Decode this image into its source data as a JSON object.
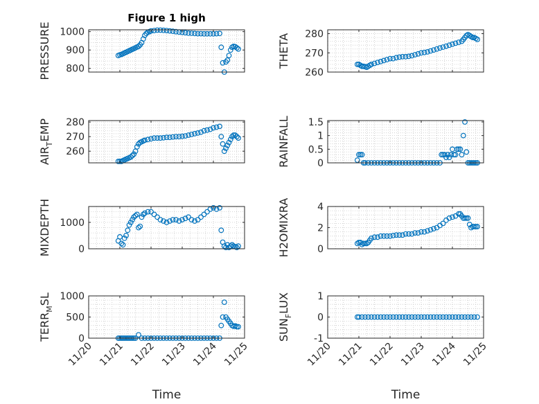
{
  "chart_data": [
    {
      "type": "scatter",
      "title": "Figure 1 high",
      "ylabel": "PRESSURE",
      "xlim": [
        20,
        25
      ],
      "ylim": [
        780,
        1010
      ],
      "yticks": [
        800,
        900,
        1000
      ],
      "x": [
        20.95,
        21.0,
        21.05,
        21.1,
        21.15,
        21.2,
        21.25,
        21.3,
        21.35,
        21.4,
        21.45,
        21.5,
        21.55,
        21.6,
        21.65,
        21.7,
        21.75,
        21.8,
        21.85,
        21.9,
        21.95,
        22.0,
        22.1,
        22.2,
        22.3,
        22.4,
        22.5,
        22.6,
        22.7,
        22.8,
        22.9,
        23.0,
        23.1,
        23.2,
        23.3,
        23.4,
        23.5,
        23.6,
        23.7,
        23.8,
        23.9,
        24.0,
        24.1,
        24.2,
        24.25,
        24.3,
        24.35,
        24.4,
        24.45,
        24.5,
        24.55,
        24.6,
        24.65,
        24.7,
        24.75,
        24.8
      ],
      "y": [
        870,
        874,
        876,
        880,
        884,
        888,
        892,
        896,
        900,
        904,
        908,
        912,
        916,
        920,
        928,
        940,
        960,
        980,
        990,
        997,
        1000,
        1004,
        1006,
        1008,
        1008,
        1007,
        1006,
        1004,
        1002,
        1000,
        998,
        996,
        994,
        992,
        991,
        990,
        989,
        989,
        988,
        988,
        988,
        988,
        989,
        990,
        915,
        830,
        780,
        835,
        845,
        870,
        900,
        915,
        920,
        918,
        912,
        905
      ]
    },
    {
      "type": "scatter",
      "ylabel": "THETA",
      "xlim": [
        20,
        25
      ],
      "ylim": [
        260,
        282
      ],
      "yticks": [
        260,
        270,
        280
      ],
      "x": [
        20.95,
        21.0,
        21.05,
        21.1,
        21.15,
        21.2,
        21.25,
        21.3,
        21.35,
        21.4,
        21.5,
        21.6,
        21.7,
        21.8,
        21.9,
        22.0,
        22.1,
        22.2,
        22.3,
        22.4,
        22.5,
        22.6,
        22.7,
        22.8,
        22.9,
        23.0,
        23.1,
        23.2,
        23.3,
        23.4,
        23.5,
        23.6,
        23.7,
        23.8,
        23.9,
        24.0,
        24.1,
        24.2,
        24.3,
        24.35,
        24.4,
        24.45,
        24.5,
        24.55,
        24.6,
        24.65,
        24.7,
        24.75,
        24.8
      ],
      "y": [
        264,
        264,
        263.5,
        263,
        263,
        262.8,
        262.5,
        263,
        263.5,
        264,
        264.5,
        265,
        265.5,
        266,
        266.5,
        267,
        267,
        267.5,
        267.8,
        268,
        268,
        268.2,
        268.5,
        269,
        269.5,
        270,
        270.2,
        270.5,
        271,
        271.5,
        272,
        272.5,
        273,
        273.5,
        274,
        274.5,
        275,
        275.5,
        276,
        277,
        278,
        279,
        279.5,
        279,
        278.5,
        278,
        278,
        277.5,
        277
      ]
    },
    {
      "type": "scatter",
      "ylabel": "AIR_TEMP",
      "xlim": [
        20,
        25
      ],
      "ylim": [
        252,
        281
      ],
      "yticks": [
        260,
        270,
        280
      ],
      "x": [
        20.95,
        21.0,
        21.05,
        21.1,
        21.15,
        21.2,
        21.25,
        21.3,
        21.35,
        21.4,
        21.45,
        21.5,
        21.55,
        21.6,
        21.65,
        21.7,
        21.75,
        21.8,
        21.9,
        22.0,
        22.1,
        22.2,
        22.3,
        22.4,
        22.5,
        22.6,
        22.7,
        22.8,
        22.9,
        23.0,
        23.1,
        23.2,
        23.3,
        23.4,
        23.5,
        23.6,
        23.7,
        23.8,
        23.9,
        24.0,
        24.1,
        24.2,
        24.25,
        24.3,
        24.35,
        24.4,
        24.45,
        24.5,
        24.55,
        24.6,
        24.65,
        24.7,
        24.75,
        24.8
      ],
      "y": [
        253,
        253,
        253,
        253.5,
        254,
        254.5,
        255,
        255.5,
        256,
        257,
        258,
        260,
        263,
        265,
        266,
        266.5,
        267,
        267.5,
        268,
        268.5,
        269,
        269,
        269,
        269.2,
        269.5,
        269.5,
        269.8,
        270,
        270,
        270.2,
        270.5,
        271,
        271.5,
        272,
        272.5,
        273,
        274,
        274.5,
        275,
        276,
        276.5,
        277,
        270,
        265,
        260,
        262,
        264,
        266,
        268,
        270,
        271,
        271,
        270,
        269
      ]
    },
    {
      "type": "scatter",
      "ylabel": "RAINFALL",
      "xlim": [
        20,
        25
      ],
      "ylim": [
        0,
        1.55
      ],
      "yticks": [
        0,
        0.5,
        1,
        1.5
      ],
      "ytick_labels": [
        "0",
        "0.5",
        "1",
        "1.5"
      ],
      "x": [
        20.95,
        21.0,
        21.05,
        21.1,
        21.15,
        21.2,
        21.3,
        21.4,
        21.5,
        21.6,
        21.7,
        21.8,
        21.9,
        22.0,
        22.1,
        22.2,
        22.3,
        22.4,
        22.5,
        22.6,
        22.7,
        22.8,
        22.9,
        23.0,
        23.1,
        23.2,
        23.3,
        23.4,
        23.5,
        23.6,
        23.65,
        23.7,
        23.75,
        23.8,
        23.85,
        23.9,
        23.95,
        24.0,
        24.05,
        24.1,
        24.15,
        24.2,
        24.25,
        24.3,
        24.35,
        24.4,
        24.45,
        24.5,
        24.55,
        24.6,
        24.65,
        24.7,
        24.75,
        24.8
      ],
      "y": [
        0.1,
        0.3,
        0.3,
        0.3,
        0,
        0,
        0,
        0,
        0,
        0,
        0,
        0,
        0,
        0,
        0,
        0,
        0,
        0,
        0,
        0,
        0,
        0,
        0,
        0,
        0,
        0,
        0,
        0,
        0,
        0,
        0.3,
        0.3,
        0.3,
        0.2,
        0.3,
        0.2,
        0.3,
        0.5,
        0.3,
        0.3,
        0.5,
        0.5,
        0.5,
        0.3,
        1.0,
        1.5,
        0.4,
        0,
        0,
        0,
        0,
        0,
        0,
        0
      ]
    },
    {
      "type": "scatter",
      "ylabel": "MIXDEPTH",
      "xlim": [
        20,
        25
      ],
      "ylim": [
        0,
        1600
      ],
      "yticks": [
        0,
        1000
      ],
      "ytick_labels": [
        "0",
        "1000"
      ],
      "x": [
        20.95,
        21.0,
        21.05,
        21.1,
        21.15,
        21.2,
        21.25,
        21.3,
        21.35,
        21.4,
        21.45,
        21.5,
        21.55,
        21.6,
        21.65,
        21.7,
        21.75,
        21.8,
        21.9,
        22.0,
        22.1,
        22.2,
        22.3,
        22.4,
        22.5,
        22.6,
        22.7,
        22.8,
        22.9,
        23.0,
        23.1,
        23.2,
        23.3,
        23.4,
        23.5,
        23.6,
        23.7,
        23.8,
        23.9,
        24.0,
        24.1,
        24.2,
        24.25,
        24.3,
        24.35,
        24.4,
        24.45,
        24.5,
        24.55,
        24.6,
        24.65,
        24.7,
        24.75,
        24.8
      ],
      "y": [
        300,
        450,
        200,
        150,
        400,
        500,
        700,
        900,
        1000,
        1100,
        1200,
        1250,
        1300,
        800,
        850,
        1200,
        1300,
        1350,
        1400,
        1400,
        1300,
        1200,
        1100,
        1050,
        1000,
        1050,
        1100,
        1100,
        1050,
        1100,
        1150,
        1200,
        1100,
        1050,
        1100,
        1200,
        1300,
        1400,
        1500,
        1550,
        1500,
        1550,
        700,
        250,
        100,
        50,
        150,
        50,
        100,
        150,
        100,
        80,
        50,
        100
      ]
    },
    {
      "type": "scatter",
      "ylabel": "H2OMIXRA",
      "xlim": [
        20,
        25
      ],
      "ylim": [
        0,
        4
      ],
      "yticks": [
        0,
        2,
        4
      ],
      "x": [
        20.95,
        21.0,
        21.05,
        21.1,
        21.15,
        21.2,
        21.25,
        21.3,
        21.35,
        21.4,
        21.5,
        21.6,
        21.7,
        21.8,
        21.9,
        22.0,
        22.1,
        22.2,
        22.3,
        22.4,
        22.5,
        22.6,
        22.7,
        22.8,
        22.9,
        23.0,
        23.1,
        23.2,
        23.3,
        23.4,
        23.5,
        23.6,
        23.7,
        23.8,
        23.9,
        24.0,
        24.1,
        24.2,
        24.25,
        24.3,
        24.35,
        24.4,
        24.45,
        24.5,
        24.55,
        24.6,
        24.65,
        24.7,
        24.75,
        24.8
      ],
      "y": [
        0.5,
        0.6,
        0.6,
        0.4,
        0.5,
        0.5,
        0.5,
        0.6,
        0.8,
        1.0,
        1.1,
        1.1,
        1.2,
        1.2,
        1.2,
        1.2,
        1.25,
        1.3,
        1.3,
        1.3,
        1.4,
        1.4,
        1.4,
        1.5,
        1.5,
        1.6,
        1.6,
        1.7,
        1.8,
        1.9,
        2.0,
        2.2,
        2.4,
        2.7,
        2.9,
        3.0,
        3.1,
        3.3,
        3.3,
        3.1,
        2.9,
        2.9,
        2.9,
        2.9,
        2.3,
        2.0,
        2.1,
        2.1,
        2.1,
        2.1
      ]
    },
    {
      "type": "scatter",
      "ylabel": "TERR_MSL",
      "xlim": [
        20,
        25
      ],
      "ylim": [
        0,
        1000
      ],
      "yticks": [
        0,
        500,
        1000
      ],
      "x": [
        20.95,
        21.0,
        21.05,
        21.1,
        21.15,
        21.2,
        21.25,
        21.3,
        21.35,
        21.4,
        21.45,
        21.5,
        21.6,
        21.7,
        21.8,
        21.9,
        22.0,
        22.1,
        22.2,
        22.3,
        22.4,
        22.5,
        22.6,
        22.7,
        22.8,
        22.9,
        23.0,
        23.1,
        23.2,
        23.3,
        23.4,
        23.5,
        23.6,
        23.7,
        23.8,
        23.9,
        24.0,
        24.1,
        24.2,
        24.25,
        24.3,
        24.35,
        24.4,
        24.45,
        24.5,
        24.55,
        24.6,
        24.65,
        24.7,
        24.75,
        24.8
      ],
      "y": [
        0,
        0,
        0,
        0,
        0,
        0,
        0,
        0,
        0,
        0,
        0,
        0,
        80,
        0,
        0,
        0,
        0,
        0,
        0,
        0,
        0,
        0,
        0,
        0,
        0,
        0,
        0,
        0,
        0,
        0,
        0,
        0,
        0,
        0,
        0,
        0,
        0,
        0,
        0,
        300,
        500,
        850,
        500,
        450,
        400,
        350,
        300,
        280,
        290,
        270,
        270
      ]
    },
    {
      "type": "scatter",
      "ylabel": "SUN_FLUX",
      "xlim": [
        20,
        25
      ],
      "ylim": [
        -1,
        1
      ],
      "yticks": [
        -1,
        0,
        1
      ],
      "x": [
        20.95,
        21.0,
        21.1,
        21.2,
        21.3,
        21.4,
        21.5,
        21.6,
        21.7,
        21.8,
        21.9,
        22.0,
        22.1,
        22.2,
        22.3,
        22.4,
        22.5,
        22.6,
        22.7,
        22.8,
        22.9,
        23.0,
        23.1,
        23.2,
        23.3,
        23.4,
        23.5,
        23.6,
        23.7,
        23.8,
        23.9,
        24.0,
        24.1,
        24.2,
        24.3,
        24.4,
        24.5,
        24.6,
        24.7,
        24.8
      ],
      "y": [
        0,
        0,
        0,
        0,
        0,
        0,
        0,
        0,
        0,
        0,
        0,
        0,
        0,
        0,
        0,
        0,
        0,
        0,
        0,
        0,
        0,
        0,
        0,
        0,
        0,
        0,
        0,
        0,
        0,
        0,
        0,
        0,
        0,
        0,
        0,
        0,
        0,
        0,
        0,
        0
      ]
    }
  ],
  "ylabel_parts": [
    {
      "main": "PRESSURE"
    },
    {
      "main": "THETA"
    },
    {
      "main": "AIR",
      "sub": "T",
      "rest": "EMP"
    },
    {
      "main": "RAINFALL"
    },
    {
      "main": "MIXDEPTH"
    },
    {
      "main": "H2OMIXRA"
    },
    {
      "main": "TERR",
      "sub": "M",
      "rest": "SL"
    },
    {
      "main": "SUN",
      "sub": "F",
      "rest": "LUX"
    }
  ],
  "x_axis": {
    "label": "Time",
    "ticks": [
      20,
      21,
      22,
      23,
      24,
      25
    ],
    "tick_labels": [
      "11/20",
      "11/21",
      "11/22",
      "11/23",
      "11/24",
      "11/25"
    ]
  },
  "colors": {
    "marker": "#0072bd",
    "axis": "#262626",
    "grid": "#c8c8c8"
  }
}
